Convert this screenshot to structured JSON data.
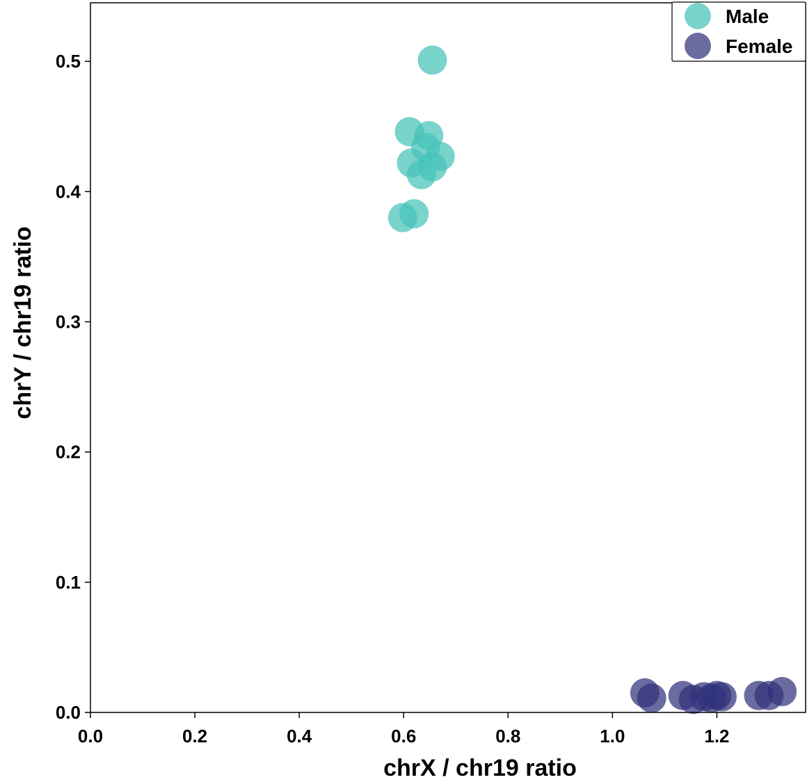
{
  "chart_data": {
    "type": "scatter",
    "title": "",
    "xlabel": "chrX / chr19 ratio",
    "ylabel": "chrY / chr19 ratio",
    "xlim": [
      0.0,
      1.37
    ],
    "ylim": [
      0.0,
      0.545
    ],
    "xticks": [
      "0.0",
      "0.2",
      "0.4",
      "0.6",
      "0.8",
      "1.0",
      "1.2"
    ],
    "yticks": [
      "0.0",
      "0.1",
      "0.2",
      "0.3",
      "0.4",
      "0.5"
    ],
    "grid": false,
    "legend_position": "top-right",
    "series": [
      {
        "name": "Male",
        "color": "#45c4b8",
        "points": [
          {
            "x": 0.655,
            "y": 0.501
          },
          {
            "x": 0.611,
            "y": 0.446
          },
          {
            "x": 0.648,
            "y": 0.443
          },
          {
            "x": 0.642,
            "y": 0.434
          },
          {
            "x": 0.67,
            "y": 0.427
          },
          {
            "x": 0.615,
            "y": 0.422
          },
          {
            "x": 0.655,
            "y": 0.419
          },
          {
            "x": 0.634,
            "y": 0.413
          },
          {
            "x": 0.62,
            "y": 0.383
          },
          {
            "x": 0.598,
            "y": 0.38
          }
        ]
      },
      {
        "name": "Female",
        "color": "#31327a",
        "points": [
          {
            "x": 1.062,
            "y": 0.015
          },
          {
            "x": 1.075,
            "y": 0.011
          },
          {
            "x": 1.135,
            "y": 0.013
          },
          {
            "x": 1.155,
            "y": 0.01
          },
          {
            "x": 1.175,
            "y": 0.012
          },
          {
            "x": 1.19,
            "y": 0.011
          },
          {
            "x": 1.2,
            "y": 0.013
          },
          {
            "x": 1.21,
            "y": 0.012
          },
          {
            "x": 1.28,
            "y": 0.013
          },
          {
            "x": 1.3,
            "y": 0.013
          },
          {
            "x": 1.325,
            "y": 0.016
          }
        ]
      }
    ]
  }
}
